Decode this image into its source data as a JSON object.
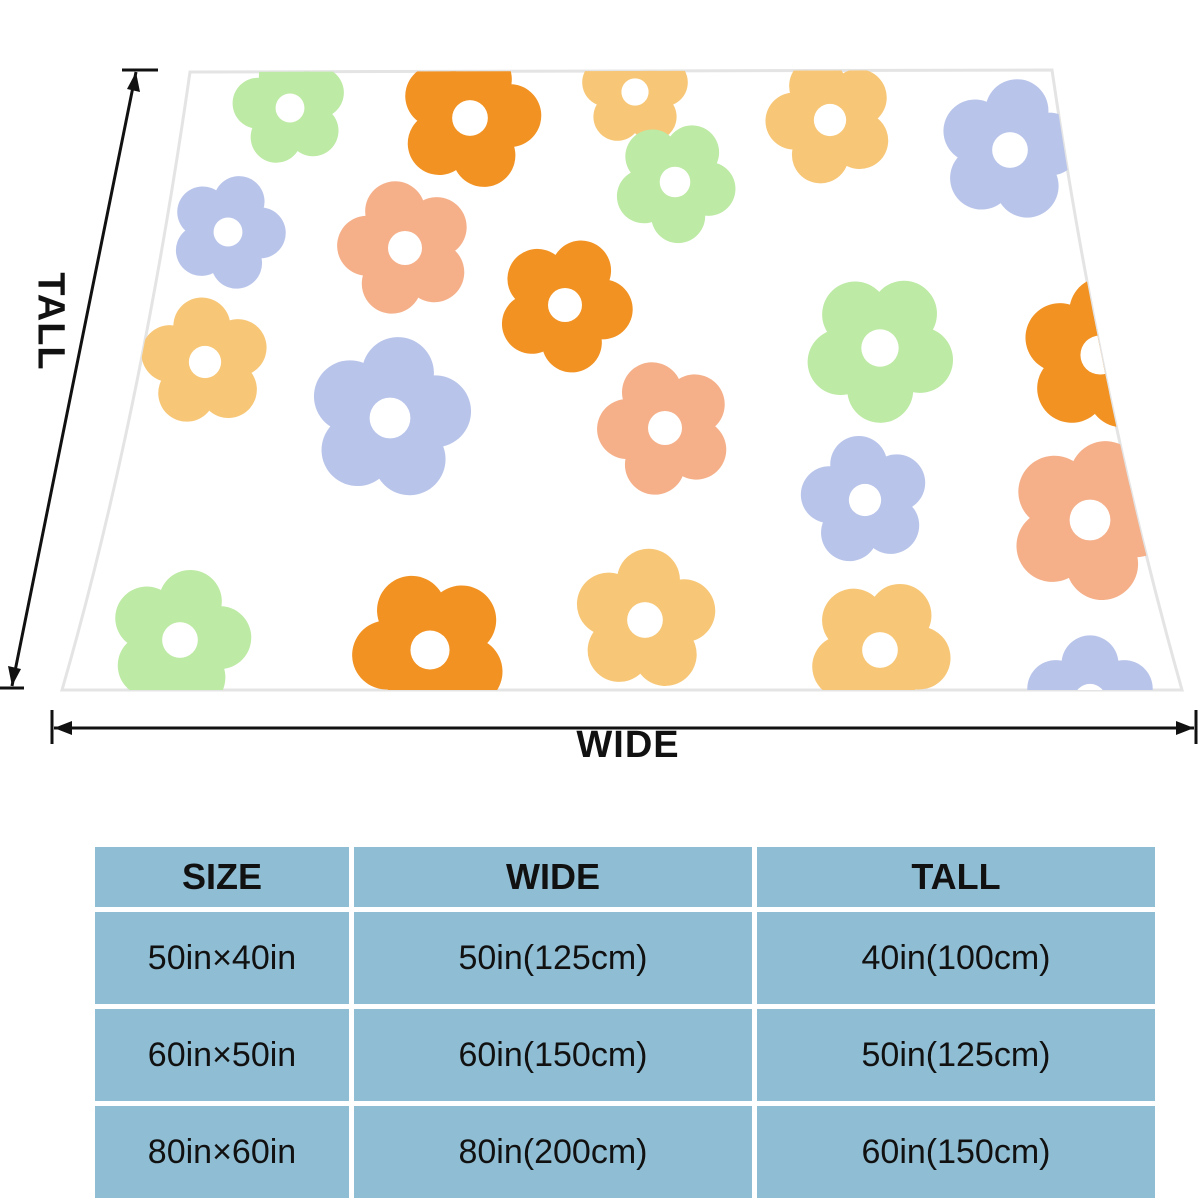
{
  "dimensions": {
    "wide_label": "WIDE",
    "tall_label": "TALL"
  },
  "blanket": {
    "pattern": "retro-flower-pattern",
    "colors": {
      "orange": "#f29222",
      "peach": "#f5b08a",
      "yellow": "#f7c777",
      "green": "#bdeaa4",
      "blue": "#b8c4ea",
      "background": "#ffffff"
    }
  },
  "size_table": {
    "headers": [
      "SIZE",
      "WIDE",
      "TALL"
    ],
    "rows": [
      {
        "size": "50in×40in",
        "wide": "50in(125cm)",
        "tall": "40in(100cm)"
      },
      {
        "size": "60in×50in",
        "wide": "60in(150cm)",
        "tall": "50in(125cm)"
      },
      {
        "size": "80in×60in",
        "wide": "80in(200cm)",
        "tall": "60in(150cm)"
      }
    ],
    "cell_color": "#8fbdd3"
  }
}
